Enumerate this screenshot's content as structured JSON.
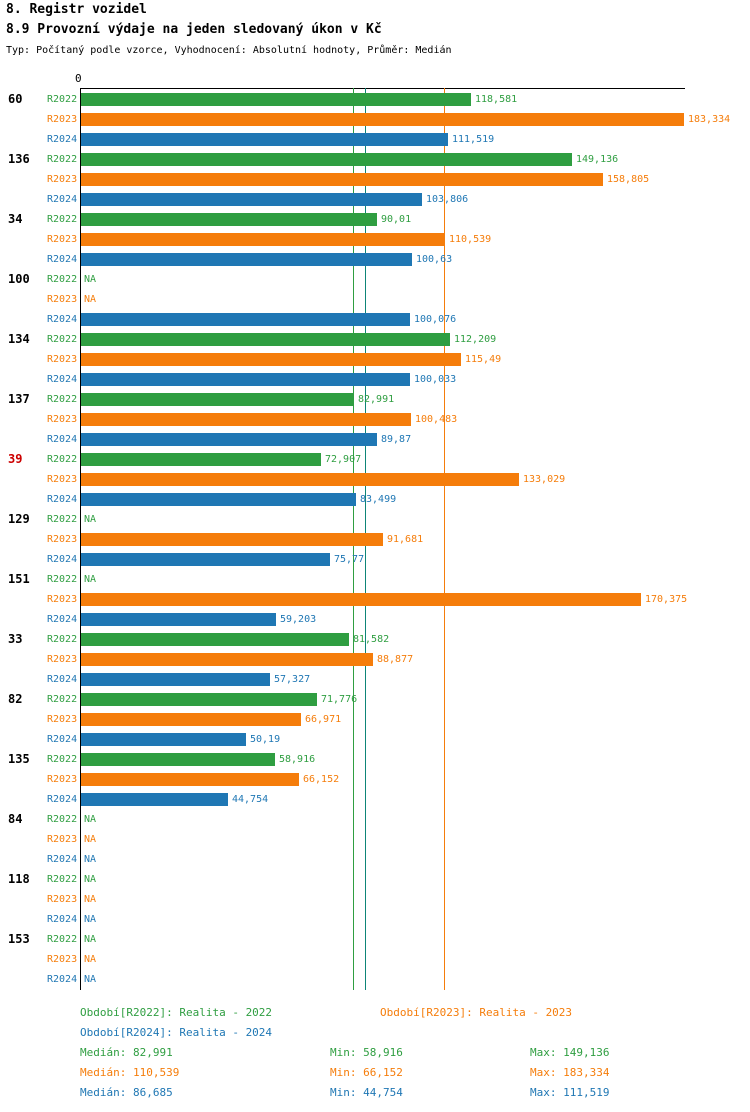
{
  "header": {
    "title": "8. Registr vozidel",
    "subtitle": "8.9 Provozní výdaje na jeden sledovaný úkon v Kč",
    "meta": "Typ: Počítaný podle vzorce, Vyhodnocení: Absolutní hodnoty, Průměr: Medián"
  },
  "colors": {
    "r2022": "#2f9e41",
    "r2023": "#f57d0b",
    "r2024": "#1f77b4",
    "highlight": "#cc0000",
    "axis": "#000000",
    "median_line_r2022": "#2f9e41",
    "median_line_r2023": "#f57d0b",
    "median_line_r2024": "#0e8577"
  },
  "chart_data": {
    "type": "bar",
    "orientation": "horizontal",
    "value_unit": "Kč",
    "x_axis": {
      "zero_label": "0",
      "min": 0,
      "max": 190
    },
    "series": [
      "R2022",
      "R2023",
      "R2024"
    ],
    "na_label": "NA",
    "groups": [
      {
        "label": "60",
        "highlight": false,
        "rows": [
          {
            "series": "R2022",
            "value": 118.581,
            "display": "118,581"
          },
          {
            "series": "R2023",
            "value": 183.334,
            "display": "183,334"
          },
          {
            "series": "R2024",
            "value": 111.519,
            "display": "111,519"
          }
        ]
      },
      {
        "label": "136",
        "highlight": false,
        "rows": [
          {
            "series": "R2022",
            "value": 149.136,
            "display": "149,136"
          },
          {
            "series": "R2023",
            "value": 158.805,
            "display": "158,805"
          },
          {
            "series": "R2024",
            "value": 103.806,
            "display": "103,806"
          }
        ]
      },
      {
        "label": "34",
        "highlight": false,
        "rows": [
          {
            "series": "R2022",
            "value": 90.01,
            "display": "90,01"
          },
          {
            "series": "R2023",
            "value": 110.539,
            "display": "110,539"
          },
          {
            "series": "R2024",
            "value": 100.63,
            "display": "100,63"
          }
        ]
      },
      {
        "label": "100",
        "highlight": false,
        "rows": [
          {
            "series": "R2022",
            "value": null,
            "display": null
          },
          {
            "series": "R2023",
            "value": null,
            "display": null
          },
          {
            "series": "R2024",
            "value": 100.076,
            "display": "100,076"
          }
        ]
      },
      {
        "label": "134",
        "highlight": false,
        "rows": [
          {
            "series": "R2022",
            "value": 112.209,
            "display": "112,209"
          },
          {
            "series": "R2023",
            "value": 115.49,
            "display": "115,49"
          },
          {
            "series": "R2024",
            "value": 100.033,
            "display": "100,033"
          }
        ]
      },
      {
        "label": "137",
        "highlight": false,
        "rows": [
          {
            "series": "R2022",
            "value": 82.991,
            "display": "82,991"
          },
          {
            "series": "R2023",
            "value": 100.483,
            "display": "100,483"
          },
          {
            "series": "R2024",
            "value": 89.87,
            "display": "89,87"
          }
        ]
      },
      {
        "label": "39",
        "highlight": true,
        "rows": [
          {
            "series": "R2022",
            "value": 72.907,
            "display": "72,907"
          },
          {
            "series": "R2023",
            "value": 133.029,
            "display": "133,029"
          },
          {
            "series": "R2024",
            "value": 83.499,
            "display": "83,499"
          }
        ]
      },
      {
        "label": "129",
        "highlight": false,
        "rows": [
          {
            "series": "R2022",
            "value": null,
            "display": null
          },
          {
            "series": "R2023",
            "value": 91.681,
            "display": "91,681"
          },
          {
            "series": "R2024",
            "value": 75.77,
            "display": "75,77"
          }
        ]
      },
      {
        "label": "151",
        "highlight": false,
        "rows": [
          {
            "series": "R2022",
            "value": null,
            "display": null
          },
          {
            "series": "R2023",
            "value": 170.375,
            "display": "170,375"
          },
          {
            "series": "R2024",
            "value": 59.203,
            "display": "59,203"
          }
        ]
      },
      {
        "label": "33",
        "highlight": false,
        "rows": [
          {
            "series": "R2022",
            "value": 81.582,
            "display": "81,582"
          },
          {
            "series": "R2023",
            "value": 88.877,
            "display": "88,877"
          },
          {
            "series": "R2024",
            "value": 57.327,
            "display": "57,327"
          }
        ]
      },
      {
        "label": "82",
        "highlight": false,
        "rows": [
          {
            "series": "R2022",
            "value": 71.776,
            "display": "71,776"
          },
          {
            "series": "R2023",
            "value": 66.971,
            "display": "66,971"
          },
          {
            "series": "R2024",
            "value": 50.19,
            "display": "50,19"
          }
        ]
      },
      {
        "label": "135",
        "highlight": false,
        "rows": [
          {
            "series": "R2022",
            "value": 58.916,
            "display": "58,916"
          },
          {
            "series": "R2023",
            "value": 66.152,
            "display": "66,152"
          },
          {
            "series": "R2024",
            "value": 44.754,
            "display": "44,754"
          }
        ]
      },
      {
        "label": "84",
        "highlight": false,
        "rows": [
          {
            "series": "R2022",
            "value": null,
            "display": null
          },
          {
            "series": "R2023",
            "value": null,
            "display": null
          },
          {
            "series": "R2024",
            "value": null,
            "display": null
          }
        ]
      },
      {
        "label": "118",
        "highlight": false,
        "rows": [
          {
            "series": "R2022",
            "value": null,
            "display": null
          },
          {
            "series": "R2023",
            "value": null,
            "display": null
          },
          {
            "series": "R2024",
            "value": null,
            "display": null
          }
        ]
      },
      {
        "label": "153",
        "highlight": false,
        "rows": [
          {
            "series": "R2022",
            "value": null,
            "display": null
          },
          {
            "series": "R2023",
            "value": null,
            "display": null
          },
          {
            "series": "R2024",
            "value": null,
            "display": null
          }
        ]
      }
    ],
    "reference_lines": [
      {
        "name": "median-r2022",
        "value": 82.991,
        "color": "#2f9e41"
      },
      {
        "name": "median-r2024",
        "value": 86.685,
        "color": "#0e8577"
      },
      {
        "name": "median-r2023",
        "value": 110.539,
        "color": "#f57d0b"
      }
    ]
  },
  "legend": {
    "r2022": "Období[R2022]: Realita - 2022",
    "r2023": "Období[R2023]: Realita - 2023",
    "r2024": "Období[R2024]: Realita - 2024"
  },
  "stats": {
    "r2022": {
      "median": "Medián: 82,991",
      "min": "Min: 58,916",
      "max": "Max: 149,136"
    },
    "r2023": {
      "median": "Medián: 110,539",
      "min": "Min: 66,152",
      "max": "Max: 183,334"
    },
    "r2024": {
      "median": "Medián: 86,685",
      "min": "Min: 44,754",
      "max": "Max: 111,519"
    }
  }
}
